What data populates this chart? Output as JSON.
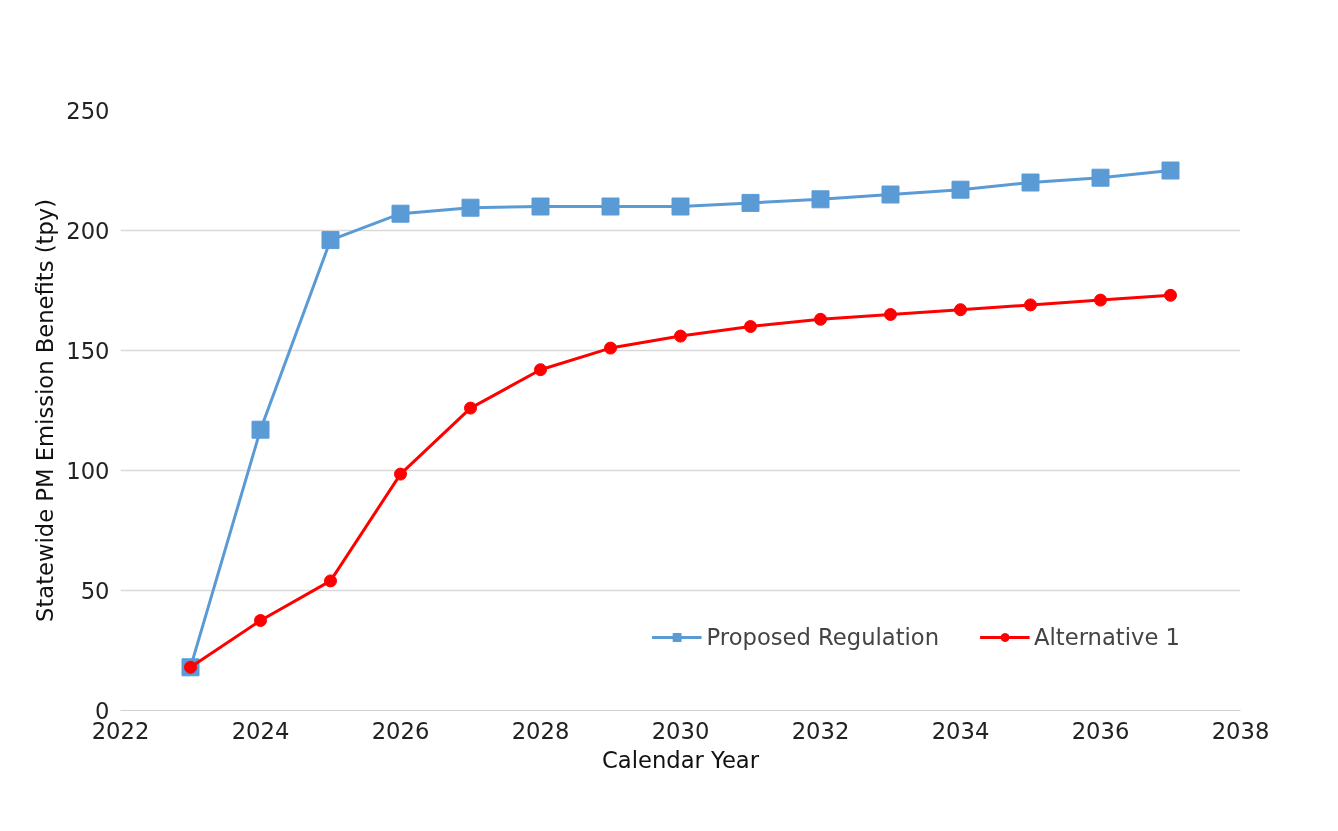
{
  "chart_data": {
    "type": "line",
    "xlabel": "Calendar Year",
    "ylabel": "Statewide PM Emission Benefits (tpy)",
    "x": [
      2023,
      2024,
      2025,
      2026,
      2027,
      2028,
      2029,
      2030,
      2031,
      2032,
      2033,
      2034,
      2035,
      2036,
      2037
    ],
    "series": [
      {
        "name": "Proposed Regulation",
        "color": "#5b9bd5",
        "marker": "square",
        "values": [
          18,
          117,
          196,
          207,
          209.5,
          210,
          210,
          210,
          211.5,
          213,
          215,
          217,
          220,
          222,
          225
        ]
      },
      {
        "name": "Alternative 1",
        "color": "#ff0000",
        "marker": "circle",
        "values": [
          18,
          37.5,
          54,
          98.5,
          126,
          142,
          151,
          156,
          160,
          163,
          165,
          167,
          169,
          171,
          173
        ]
      }
    ],
    "xlim": [
      2022,
      2038
    ],
    "xticks": [
      2022,
      2024,
      2026,
      2028,
      2030,
      2032,
      2034,
      2036,
      2038
    ],
    "ylim": [
      0,
      250
    ],
    "yticks": [
      0,
      50,
      100,
      150,
      200,
      250
    ],
    "grid": "y",
    "legend": "bottom right",
    "line_style": "solid"
  }
}
